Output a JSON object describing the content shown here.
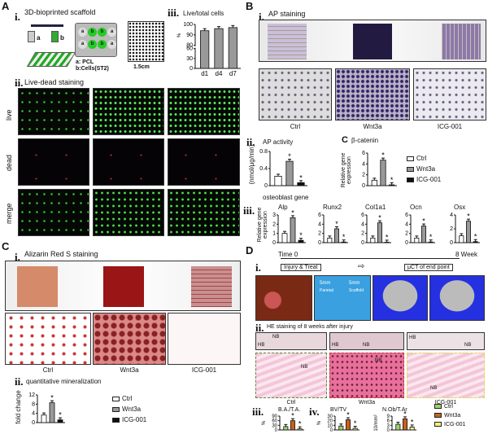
{
  "panels": {
    "A": "A",
    "B": "B",
    "C": "C",
    "D": "D"
  },
  "A": {
    "i_label": "i.",
    "i_title": "3D-bioprinted scaffold",
    "nozzle_a": "a",
    "nozzle_b": "b",
    "plate_wells": [
      "a",
      "b",
      "b",
      "a",
      "a",
      "b",
      "b",
      "a"
    ],
    "legend_a": "a: PCL",
    "legend_b": "b:Cells(ST2)",
    "scale": "1.5cm",
    "ii_label": "ii.",
    "ii_title": "Live-dead staining",
    "rows": [
      "live",
      "dead",
      "merge"
    ],
    "iii_label": "iii."
  },
  "B": {
    "i_label": "i.",
    "i_title": "AP staining",
    "groups": [
      "Ctrl",
      "Wnt3a",
      "ICG-001"
    ],
    "ii_label": "ii.",
    "iii_label": "iii.",
    "C_label": "C",
    "osteoblast_title": "osteoblast gene",
    "gene_ylabel": "Relative gene expression",
    "legend": [
      "Ctrl",
      "Wnt3a",
      "ICG-001"
    ]
  },
  "C": {
    "i_label": "i.",
    "i_title": "Alizarin Red S staining",
    "groups": [
      "Ctrl",
      "Wnt3a",
      "ICG-001"
    ],
    "ii_label": "ii.",
    "ii_title": "quantitative mineralization",
    "legend": [
      "Ctrl",
      "Wnt3a",
      "ICG-001"
    ]
  },
  "D": {
    "i_label": "i.",
    "time0": "Time 0",
    "time_end": "8 Week",
    "injury": "Injury & Treat",
    "uct": "μCT of end point",
    "defect1": "5mm",
    "defect1_sub": "Parietal",
    "defect2": "5mm",
    "defect2_sub": "Scaffold",
    "ii_label": "ii.",
    "ii_title": "HE staining of 8 weeks after injury",
    "tissue": {
      "nb": "NB",
      "hb": "HB"
    },
    "groups": [
      "Ctrl",
      "Wnt3a",
      "ICG-001"
    ],
    "iii_label": "iii.",
    "iv_label": "iv.",
    "legend": [
      "Ctrl",
      "Wnt3a",
      "ICG-001"
    ]
  },
  "colors": {
    "ctrl": "#ffffff",
    "wnt3a": "#999999",
    "icg": "#111111",
    "d_ctrl": "#9bd46a",
    "d_wnt3a": "#c8621e",
    "d_icg": "#f0f07a"
  },
  "chart_data": [
    {
      "id": "live_total",
      "type": "bar",
      "title": "Live/total cells",
      "ylabel": "%",
      "categories": [
        "d1",
        "d4",
        "d7"
      ],
      "values": [
        94,
        96,
        97
      ],
      "yticks": [
        0,
        30,
        60,
        80,
        90,
        100
      ],
      "ylim": [
        0,
        100
      ],
      "broken_axis": [
        60,
        80
      ],
      "colors": [
        "#999999",
        "#999999",
        "#999999"
      ],
      "stars": []
    },
    {
      "id": "ap_activity",
      "type": "bar",
      "title": "AP activity",
      "ylabel": "(nmol/μg/min)",
      "categories": [
        "Ctrl",
        "Wnt3a",
        "ICG-001"
      ],
      "values": [
        0.22,
        0.57,
        0.07
      ],
      "yticks": [
        0,
        0.4,
        0.8
      ],
      "ylim": [
        0,
        0.8
      ],
      "colors": [
        "#ffffff",
        "#999999",
        "#111111"
      ],
      "stars": [
        1,
        2
      ]
    },
    {
      "id": "beta_catenin",
      "type": "bar",
      "title": "β-catenin",
      "ylabel": "Relative gene expression",
      "categories": [
        "Ctrl",
        "Wnt3a",
        "ICG-001"
      ],
      "values": [
        1,
        4.7,
        0.15
      ],
      "yticks": [
        0,
        2,
        4,
        6
      ],
      "ylim": [
        0,
        6
      ],
      "colors": [
        "#ffffff",
        "#999999",
        "#111111"
      ],
      "stars": [
        1,
        2
      ]
    },
    {
      "id": "alp",
      "type": "bar",
      "title": "Alp",
      "categories": [
        "Ctrl",
        "Wnt3a",
        "ICG-001"
      ],
      "values": [
        1,
        2.7,
        0.25
      ],
      "yticks": [
        0,
        1,
        2,
        3
      ],
      "ylim": [
        0,
        3
      ],
      "colors": [
        "#ffffff",
        "#999999",
        "#111111"
      ],
      "stars": [
        1,
        2
      ]
    },
    {
      "id": "runx2",
      "type": "bar",
      "title": "Runx2",
      "categories": [
        "Ctrl",
        "Wnt3a",
        "ICG-001"
      ],
      "values": [
        1,
        3,
        0.15
      ],
      "yticks": [
        0,
        2,
        4,
        6
      ],
      "ylim": [
        0,
        6
      ],
      "colors": [
        "#ffffff",
        "#999999",
        "#111111"
      ],
      "stars": [
        1,
        2
      ]
    },
    {
      "id": "col1a1",
      "type": "bar",
      "title": "Col1a1",
      "categories": [
        "Ctrl",
        "Wnt3a",
        "ICG-001"
      ],
      "values": [
        1,
        4.3,
        0.1
      ],
      "yticks": [
        0,
        2,
        4,
        6
      ],
      "ylim": [
        0,
        6
      ],
      "colors": [
        "#ffffff",
        "#999999",
        "#111111"
      ],
      "stars": [
        1,
        2
      ]
    },
    {
      "id": "ocn",
      "type": "bar",
      "title": "Ocn",
      "categories": [
        "Ctrl",
        "Wnt3a",
        "ICG-001"
      ],
      "values": [
        1,
        3.6,
        0.15
      ],
      "yticks": [
        0,
        2,
        4,
        6
      ],
      "ylim": [
        0,
        6
      ],
      "colors": [
        "#ffffff",
        "#999999",
        "#111111"
      ],
      "stars": [
        1,
        2
      ]
    },
    {
      "id": "osx",
      "type": "bar",
      "title": "Osx",
      "categories": [
        "Ctrl",
        "Wnt3a",
        "ICG-001"
      ],
      "values": [
        1,
        3.1,
        0.15
      ],
      "yticks": [
        0,
        2,
        4
      ],
      "ylim": [
        0,
        4
      ],
      "colors": [
        "#ffffff",
        "#999999",
        "#111111"
      ],
      "stars": [
        1,
        2
      ]
    },
    {
      "id": "mineralization",
      "type": "bar",
      "title": "",
      "ylabel": "fold change",
      "categories": [
        "Ctrl",
        "Wnt3a",
        "ICG-001"
      ],
      "values": [
        3.3,
        8.6,
        1.2
      ],
      "yticks": [
        0,
        4,
        8,
        12
      ],
      "ylim": [
        0,
        12
      ],
      "colors": [
        "#ffffff",
        "#999999",
        "#111111"
      ],
      "stars": [
        1,
        2
      ]
    },
    {
      "id": "ba_ta",
      "type": "bar",
      "title": "B.A./T.A.",
      "ylabel": "%",
      "categories": [
        "Ctrl",
        "Wnt3a",
        "ICG-001"
      ],
      "values": [
        22,
        60,
        7
      ],
      "yticks": [
        0,
        30,
        60,
        90
      ],
      "ylim": [
        0,
        90
      ],
      "colors": [
        "#9bd46a",
        "#c8621e",
        "#f0f07a"
      ],
      "stars": [
        1,
        2
      ]
    },
    {
      "id": "bv_tv",
      "type": "bar",
      "title": "BV/TV",
      "ylabel": "%",
      "categories": [
        "Ctrl",
        "Wnt3a",
        "ICG-001"
      ],
      "values": [
        8.5,
        22,
        3.5
      ],
      "yticks": [
        0,
        10,
        20,
        30
      ],
      "ylim": [
        0,
        30
      ],
      "colors": [
        "#9bd46a",
        "#c8621e",
        "#f0f07a"
      ],
      "stars": [
        1,
        2
      ]
    },
    {
      "id": "nob_tar",
      "type": "bar",
      "title": "N.Ob/T.Ar",
      "ylabel": "10/mm²",
      "categories": [
        "Ctrl",
        "Wnt3a",
        "ICG-001"
      ],
      "values": [
        3.7,
        7.2,
        1.9
      ],
      "yticks": [
        0,
        3,
        6,
        9
      ],
      "ylim": [
        0,
        9
      ],
      "colors": [
        "#9bd46a",
        "#c8621e",
        "#f0f07a"
      ],
      "stars": [
        1,
        2
      ]
    }
  ]
}
